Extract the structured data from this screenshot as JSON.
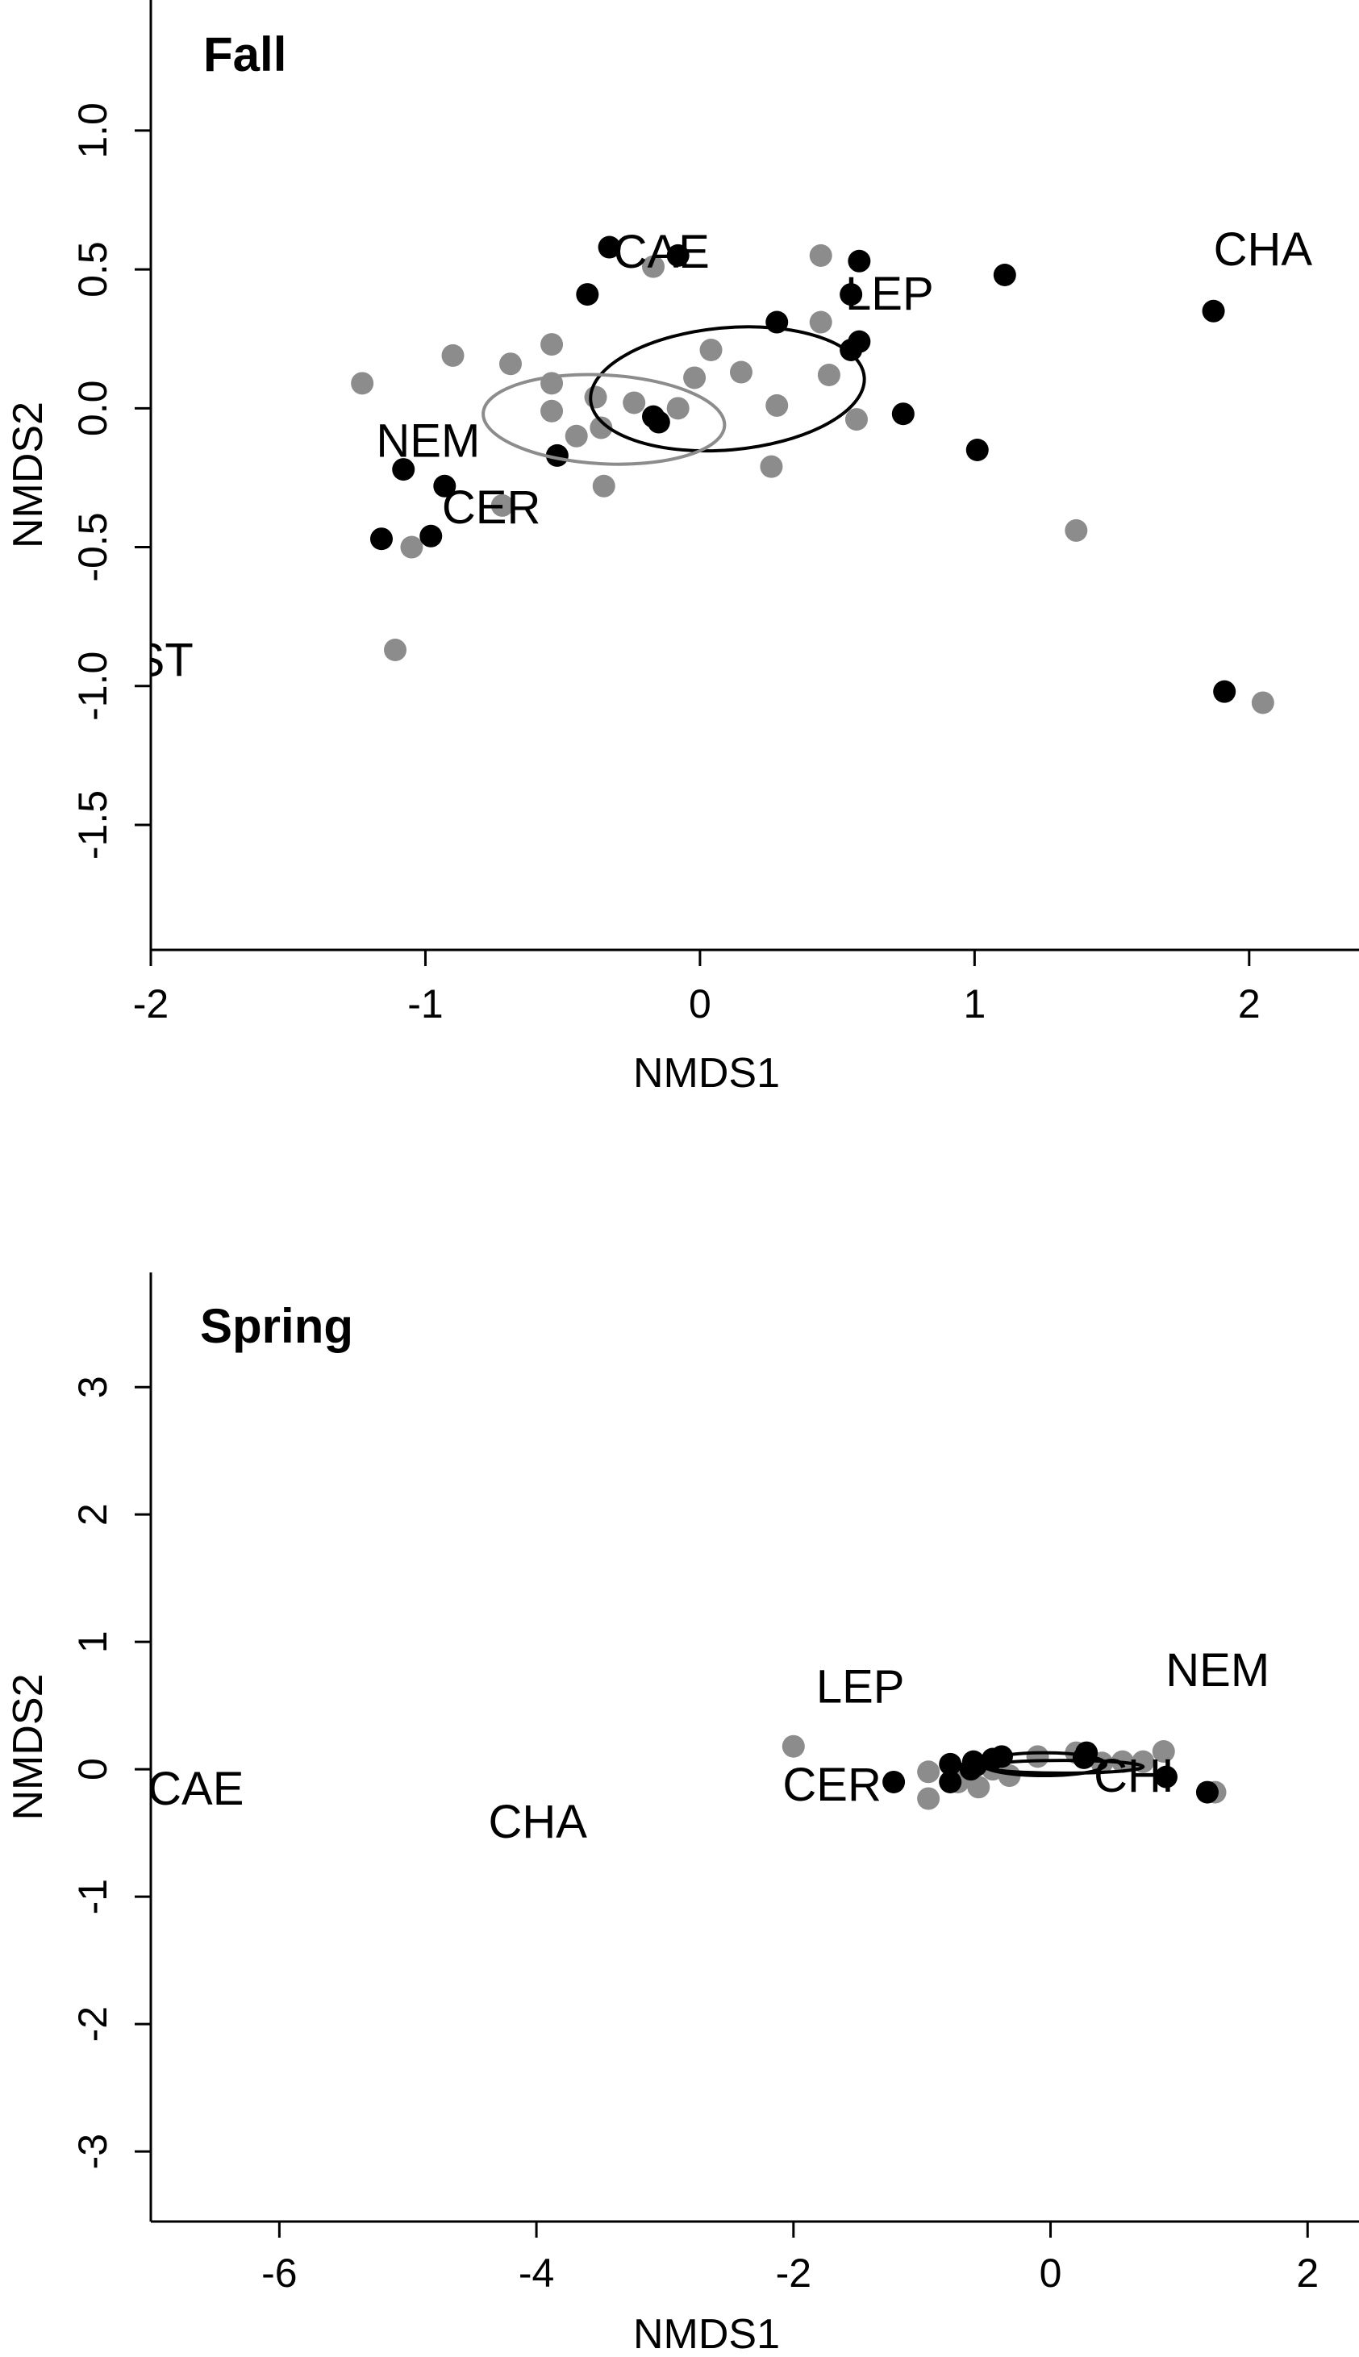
{
  "colors": {
    "group_black": "#000000",
    "group_gray": "#8c8c8c",
    "ellipse_black": "#000000",
    "ellipse_gray": "#8c8c8c"
  },
  "chart_data": [
    {
      "type": "scatter",
      "panel_title": "Fall",
      "xlabel": "NMDS1",
      "ylabel": "NMDS2",
      "xlim": [
        -2.0,
        2.4
      ],
      "ylim": [
        -1.95,
        1.47
      ],
      "xticks": [
        -2,
        -1,
        0,
        1,
        2
      ],
      "yticks": [
        -1.5,
        -1.0,
        -0.5,
        0.0,
        0.5,
        1.0
      ],
      "xtick_labels": [
        "-2",
        "-1",
        "0",
        "1",
        "2"
      ],
      "ytick_labels": [
        "-1.5",
        "-1.0",
        "-0.5",
        "0.0",
        "0.5",
        "1.0"
      ],
      "grid": false,
      "series": [
        {
          "color": "#000000",
          "points": [
            [
              -0.33,
              0.58
            ],
            [
              -0.08,
              0.55
            ],
            [
              0.58,
              0.53
            ],
            [
              1.11,
              0.48
            ],
            [
              -0.41,
              0.41
            ],
            [
              0.55,
              0.41
            ],
            [
              0.28,
              0.31
            ],
            [
              0.58,
              0.24
            ],
            [
              0.55,
              0.21
            ],
            [
              1.87,
              0.35
            ],
            [
              0.74,
              -0.02
            ],
            [
              -0.17,
              -0.03
            ],
            [
              -0.15,
              -0.05
            ],
            [
              -0.52,
              -0.17
            ],
            [
              1.01,
              -0.15
            ],
            [
              -1.08,
              -0.22
            ],
            [
              -0.93,
              -0.28
            ],
            [
              -1.16,
              -0.47
            ],
            [
              -0.98,
              -0.46
            ],
            [
              1.91,
              -1.02
            ]
          ]
        },
        {
          "color": "#8c8c8c",
          "points": [
            [
              0.44,
              0.55
            ],
            [
              -0.17,
              0.51
            ],
            [
              0.44,
              0.31
            ],
            [
              -0.54,
              0.23
            ],
            [
              0.04,
              0.21
            ],
            [
              -0.9,
              0.19
            ],
            [
              -0.69,
              0.16
            ],
            [
              0.15,
              0.13
            ],
            [
              0.47,
              0.12
            ],
            [
              -0.02,
              0.11
            ],
            [
              -1.23,
              0.09
            ],
            [
              -0.54,
              0.09
            ],
            [
              -0.38,
              0.04
            ],
            [
              -0.24,
              0.02
            ],
            [
              0.28,
              0.01
            ],
            [
              -0.08,
              0.0
            ],
            [
              -0.54,
              -0.01
            ],
            [
              0.57,
              -0.04
            ],
            [
              -0.36,
              -0.07
            ],
            [
              -0.45,
              -0.1
            ],
            [
              0.26,
              -0.21
            ],
            [
              -0.35,
              -0.28
            ],
            [
              -0.72,
              -0.35
            ],
            [
              1.37,
              -0.44
            ],
            [
              -1.05,
              -0.5
            ],
            [
              -1.11,
              -0.87
            ],
            [
              2.05,
              -1.06
            ]
          ]
        }
      ],
      "ellipses": [
        {
          "color": "#000000",
          "center": [
            0.1,
            0.07
          ],
          "rx": 0.5,
          "ry": 0.22,
          "angle_deg": 5
        },
        {
          "color": "#8c8c8c",
          "center": [
            -0.35,
            -0.04
          ],
          "rx": 0.44,
          "ry": 0.16,
          "angle_deg": -3
        }
      ],
      "species_labels": [
        {
          "text": "CAE",
          "x": -0.14,
          "y": 0.55
        },
        {
          "text": "CHA",
          "x": 2.05,
          "y": 0.56
        },
        {
          "text": "LEP",
          "x": 0.69,
          "y": 0.4
        },
        {
          "text": "NEM",
          "x": -0.99,
          "y": -0.13
        },
        {
          "text": "CER",
          "x": -0.76,
          "y": -0.37
        },
        {
          "text": "OST",
          "x": -2.02,
          "y": -0.92
        }
      ]
    },
    {
      "type": "scatter",
      "panel_title": "Spring",
      "xlabel": "NMDS1",
      "ylabel": "NMDS2",
      "xlim": [
        -7.0,
        2.4
      ],
      "ylim": [
        -3.55,
        3.9
      ],
      "xticks": [
        -6,
        -4,
        -2,
        0,
        2
      ],
      "yticks": [
        -3,
        -2,
        -1,
        0,
        1,
        2,
        3
      ],
      "xtick_labels": [
        "-6",
        "-4",
        "-2",
        "0",
        "2"
      ],
      "ytick_labels": [
        "-3",
        "-2",
        "-1",
        "0",
        "1",
        "2",
        "3"
      ],
      "grid": false,
      "series": [
        {
          "color": "#000000",
          "points": [
            [
              -1.22,
              -0.1
            ],
            [
              -0.78,
              0.04
            ],
            [
              -0.6,
              0.06
            ],
            [
              -0.62,
              0.0
            ],
            [
              -0.45,
              0.08
            ],
            [
              -0.38,
              0.1
            ],
            [
              0.26,
              0.09
            ],
            [
              0.28,
              0.13
            ],
            [
              0.9,
              -0.06
            ],
            [
              1.22,
              -0.18
            ],
            [
              -0.78,
              -0.1
            ],
            [
              -0.58,
              0.03
            ]
          ]
        },
        {
          "color": "#8c8c8c",
          "points": [
            [
              -2.0,
              0.18
            ],
            [
              -0.95,
              -0.23
            ],
            [
              -0.95,
              -0.02
            ],
            [
              -0.72,
              -0.1
            ],
            [
              -0.56,
              -0.14
            ],
            [
              -0.45,
              0.0
            ],
            [
              -0.32,
              -0.05
            ],
            [
              -0.1,
              0.1
            ],
            [
              0.2,
              0.13
            ],
            [
              0.4,
              0.05
            ],
            [
              0.56,
              0.06
            ],
            [
              0.72,
              0.06
            ],
            [
              0.88,
              0.14
            ],
            [
              1.28,
              -0.18
            ]
          ]
        }
      ],
      "ellipses": [
        {
          "color": "#000000",
          "center": [
            -0.05,
            0.04
          ],
          "rx": 0.48,
          "ry": 0.09,
          "angle_deg": 0
        },
        {
          "color": "#000000",
          "center": [
            0.1,
            0.02
          ],
          "rx": 0.62,
          "ry": 0.05,
          "angle_deg": 0
        }
      ],
      "species_labels": [
        {
          "text": "LEP",
          "x": -1.48,
          "y": 0.62
        },
        {
          "text": "NEM",
          "x": 1.3,
          "y": 0.75
        },
        {
          "text": "CAE",
          "x": -6.65,
          "y": -0.18
        },
        {
          "text": "CHA",
          "x": -3.99,
          "y": -0.44
        },
        {
          "text": "CER",
          "x": -1.7,
          "y": -0.15
        },
        {
          "text": "CHI",
          "x": 0.65,
          "y": -0.08
        }
      ]
    }
  ]
}
